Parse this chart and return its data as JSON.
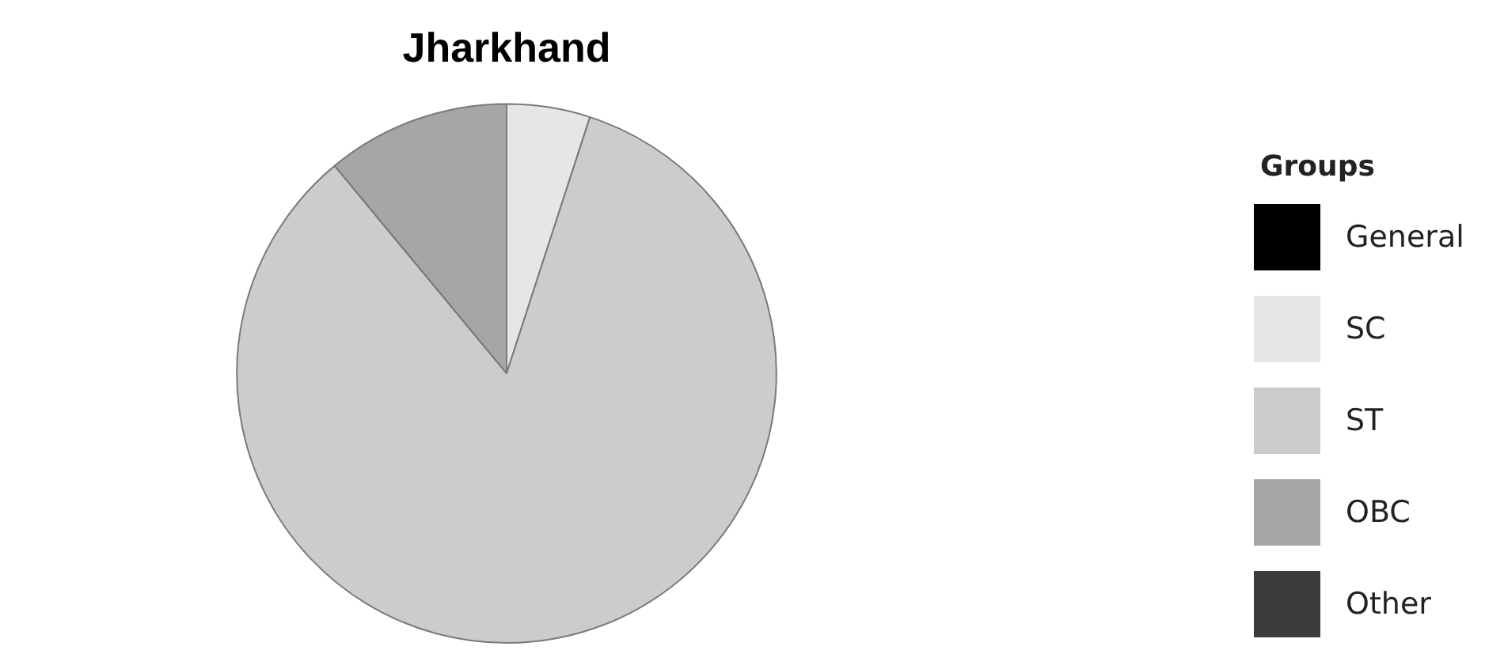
{
  "chart_data": {
    "type": "pie",
    "title": "Jharkhand",
    "legend_title": "Groups",
    "legend": "right",
    "categories": [
      "General",
      "SC",
      "ST",
      "OBC",
      "Other"
    ],
    "values": [
      0,
      5,
      84,
      11,
      0
    ],
    "colors": [
      "#000000",
      "#e6e6e6",
      "#cccccc",
      "#a6a6a6",
      "#3c3c3c"
    ]
  }
}
